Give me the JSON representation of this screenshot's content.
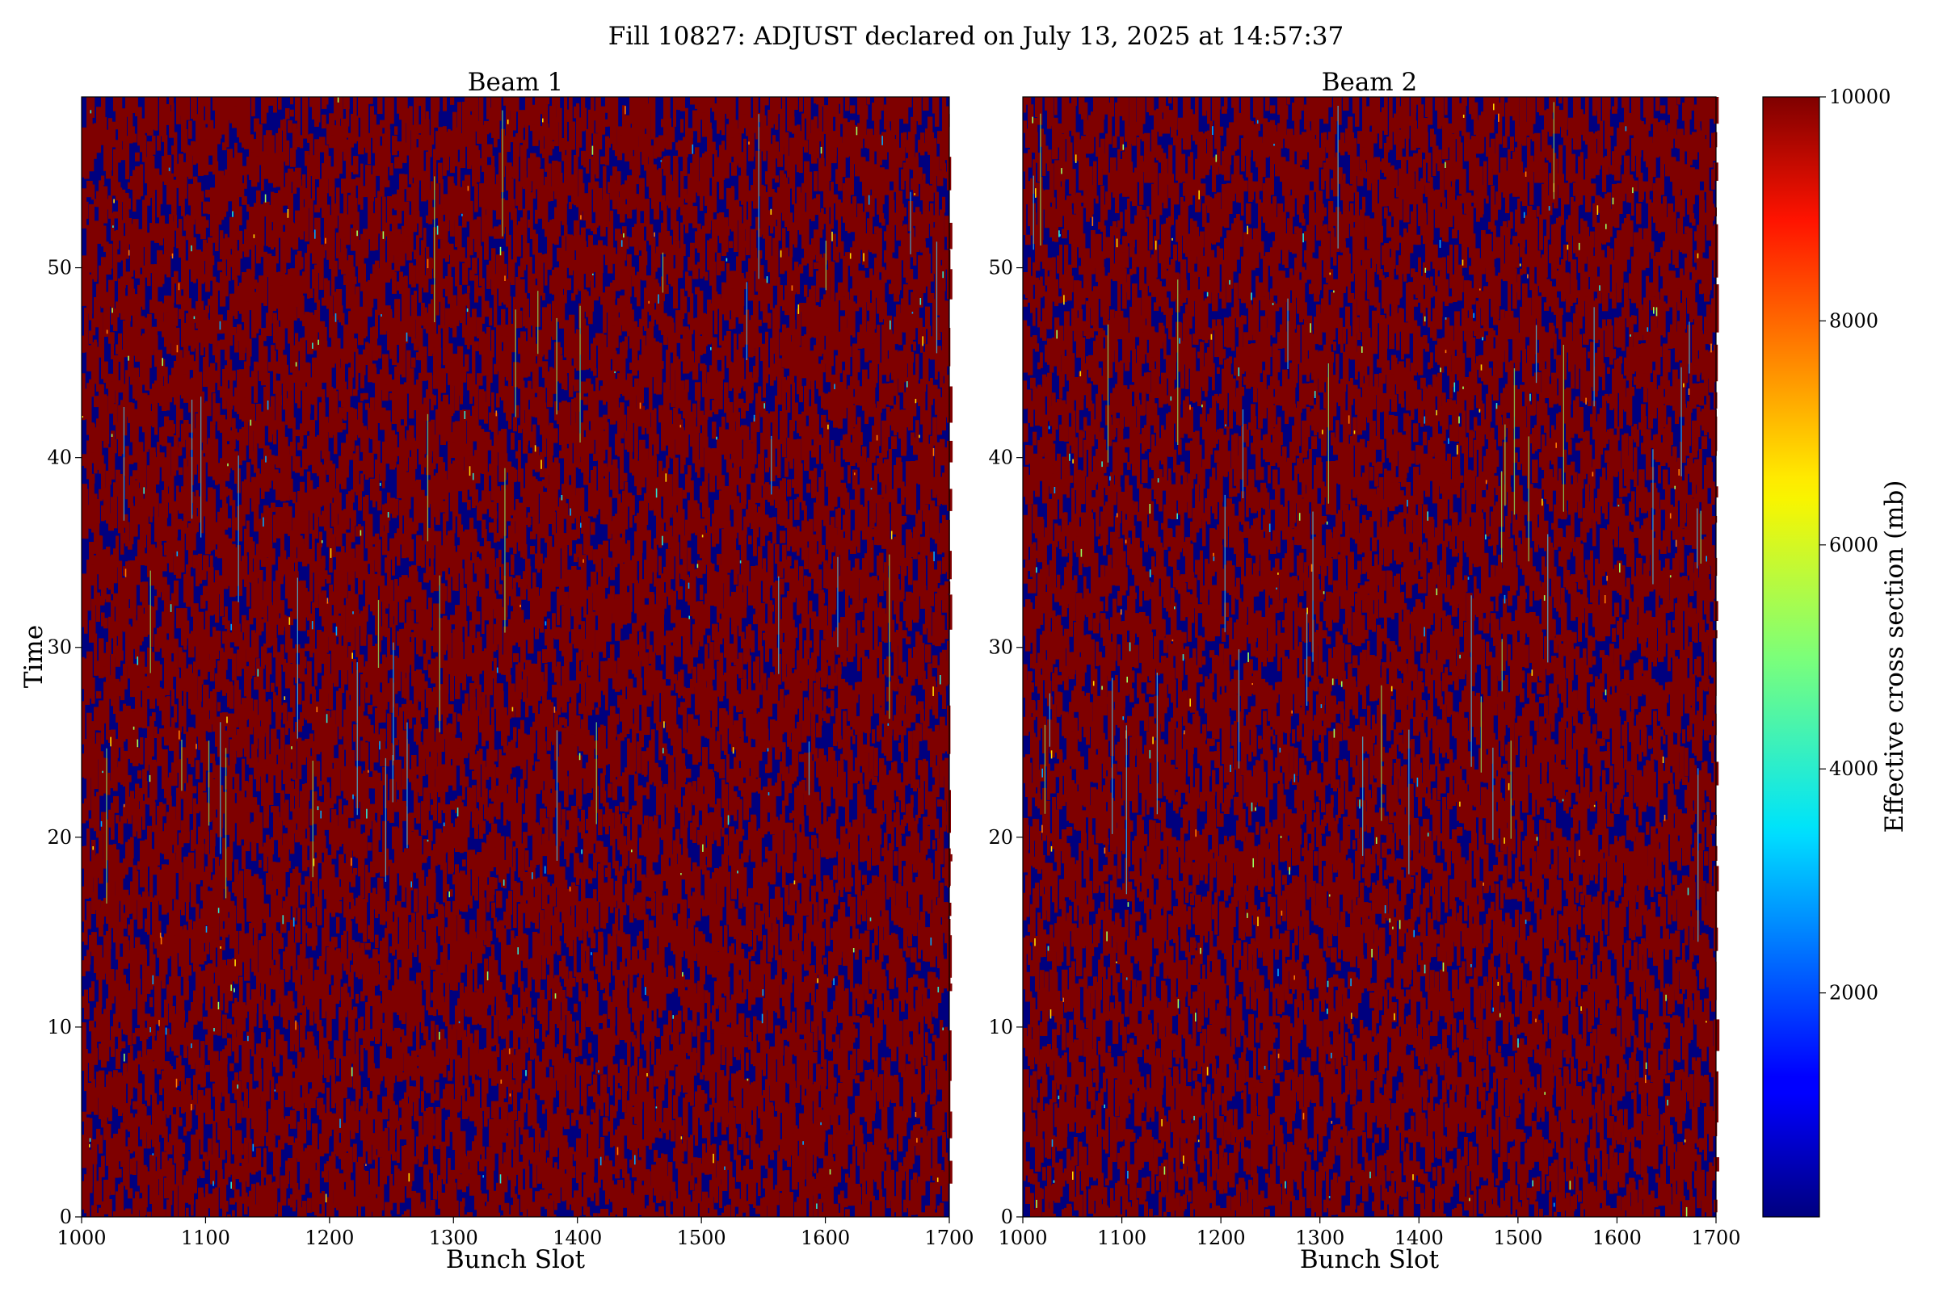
{
  "chart_data": {
    "title": "Fill 10827: ADJUST declared on July 13, 2025 at 14:57:37",
    "type": "heatmap",
    "colormap": "jet",
    "colors": {
      "low": "#00007f",
      "high": "#7f0000"
    },
    "panels": [
      {
        "title": "Beam 1",
        "xlabel": "Bunch Slot",
        "ylabel": "Time",
        "xlim": [
          1000,
          1700
        ],
        "ylim": [
          0,
          59
        ],
        "xticks": [
          "1000",
          "1100",
          "1200",
          "1300",
          "1400",
          "1500",
          "1600",
          "1700"
        ],
        "yticks": [
          "0",
          "10",
          "20",
          "30",
          "40",
          "50"
        ]
      },
      {
        "title": "Beam 2",
        "xlabel": "Bunch Slot",
        "ylabel": "",
        "xlim": [
          1000,
          1700
        ],
        "ylim": [
          0,
          59
        ],
        "xticks": [
          "1000",
          "1100",
          "1200",
          "1300",
          "1400",
          "1500",
          "1600",
          "1700"
        ],
        "yticks": [
          "0",
          "10",
          "20",
          "30",
          "40",
          "50"
        ]
      }
    ],
    "colorbar": {
      "label": "Effective cross section (mb)",
      "range": [
        0,
        10000
      ],
      "ticks": [
        "2000",
        "4000",
        "6000",
        "8000",
        "10000"
      ]
    },
    "pattern": "Values alternate between near 0 (dark blue) and saturated 10000 (dark red) across bunch slots and time, with sparse intermediate values."
  }
}
